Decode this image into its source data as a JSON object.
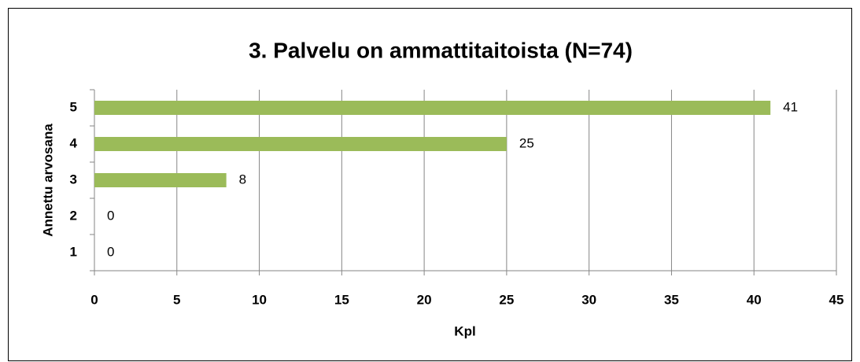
{
  "chart_data": {
    "type": "bar",
    "orientation": "horizontal",
    "title": "3. Palvelu on ammattitaitoista (N=74)",
    "x_label": "Kpl",
    "y_label": "Annettu arvosana",
    "categories": [
      "1",
      "2",
      "3",
      "4",
      "5"
    ],
    "values": [
      0,
      0,
      8,
      25,
      41
    ],
    "color": "#9bbb59",
    "xlim": [
      0,
      45
    ],
    "xticks": [
      0,
      5,
      10,
      15,
      20,
      25,
      30,
      35,
      40,
      45
    ],
    "grid": true
  }
}
